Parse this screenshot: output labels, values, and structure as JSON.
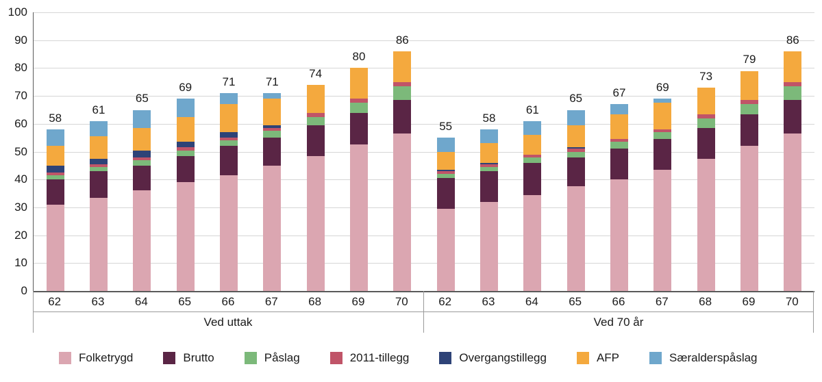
{
  "chart_data": {
    "type": "bar",
    "stacked": true,
    "title": "",
    "xlabel": "",
    "ylabel": "",
    "ylim": [
      0,
      100
    ],
    "grid": true,
    "legend_position": "bottom",
    "y_ticks": [
      0,
      10,
      20,
      30,
      40,
      50,
      60,
      70,
      80,
      90,
      100
    ],
    "categories": [
      "62",
      "63",
      "64",
      "65",
      "66",
      "67",
      "68",
      "69",
      "70"
    ],
    "series": [
      {
        "name": "Folketrygd",
        "color": "#dba6b1"
      },
      {
        "name": "Brutto",
        "color": "#5a2545"
      },
      {
        "name": "Påslag",
        "color": "#7cb97a"
      },
      {
        "name": "2011-tillegg",
        "color": "#c05468"
      },
      {
        "name": "Overgangstillegg",
        "color": "#2e4377"
      },
      {
        "name": "AFP",
        "color": "#f4a93e"
      },
      {
        "name": "Særalderspåslag",
        "color": "#6fa7cc"
      }
    ],
    "groups": [
      {
        "label": "Ved uttak",
        "totals": [
          58,
          61,
          65,
          69,
          71,
          71,
          74,
          80,
          86
        ],
        "values": [
          [
            31,
            33.5,
            36,
            39,
            41.5,
            45,
            48.5,
            52.5,
            56.5
          ],
          [
            9,
            9.5,
            9,
            9.5,
            10.5,
            10,
            11,
            11.5,
            12
          ],
          [
            1.5,
            1.5,
            2,
            2,
            2,
            2.5,
            3,
            3.5,
            5
          ],
          [
            1,
            1,
            1,
            1,
            1,
            1,
            1.5,
            1.5,
            1.5
          ],
          [
            2.5,
            2,
            2.5,
            2,
            2,
            1,
            0,
            0,
            0
          ],
          [
            7,
            8,
            8,
            9,
            10,
            9.5,
            10,
            11,
            11
          ],
          [
            6,
            5.5,
            6.5,
            6.5,
            4,
            2,
            0,
            0,
            0
          ]
        ]
      },
      {
        "label": "Ved 70 år",
        "totals": [
          55,
          58,
          61,
          65,
          67,
          69,
          73,
          79,
          86
        ],
        "values": [
          [
            29.5,
            32,
            34.5,
            37.5,
            40,
            43.5,
            47.5,
            52,
            56.5
          ],
          [
            11,
            11,
            11.5,
            10.5,
            11,
            11,
            11,
            11.5,
            12
          ],
          [
            1.5,
            1.5,
            2,
            2,
            2.5,
            2.5,
            3.5,
            3.5,
            5
          ],
          [
            1,
            1,
            1,
            1,
            1,
            1,
            1.5,
            1.5,
            1.5
          ],
          [
            0.5,
            0.5,
            0,
            0.5,
            0,
            0,
            0,
            0,
            0
          ],
          [
            6.5,
            7,
            7,
            8,
            9,
            9.5,
            9.5,
            10.5,
            11
          ],
          [
            5,
            5,
            5,
            5.5,
            3.5,
            1.5,
            0,
            0,
            0
          ]
        ]
      }
    ]
  }
}
